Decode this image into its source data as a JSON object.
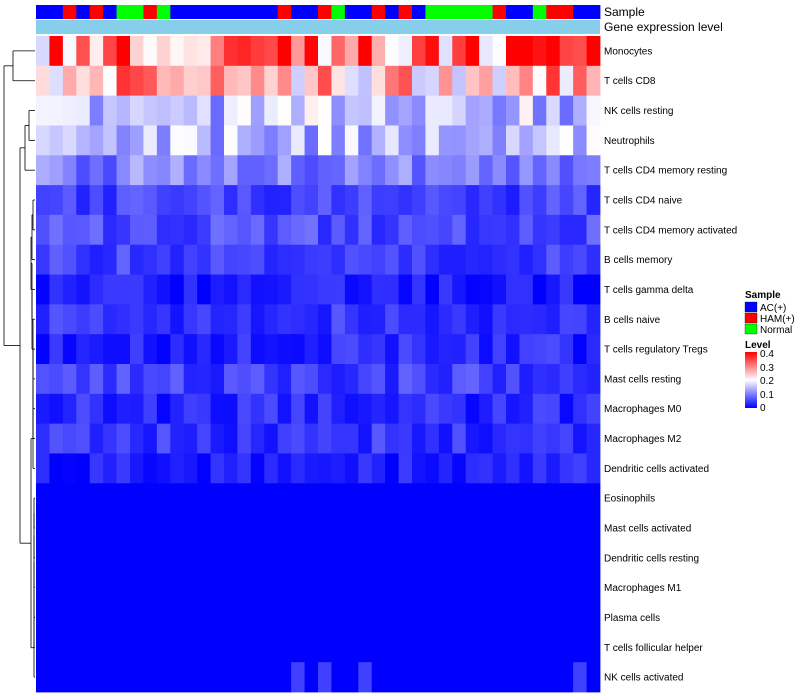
{
  "chart_data": {
    "type": "heatmap",
    "title": "",
    "annotations": {
      "sample_label": "Sample",
      "expression_label": "Gene expression level",
      "sample_groups": [
        "AC(+)",
        "AC(+)",
        "HAM(+)",
        "AC(+)",
        "HAM(+)",
        "AC(+)",
        "Normal",
        "Normal",
        "HAM(+)",
        "Normal",
        "AC(+)",
        "AC(+)",
        "AC(+)",
        "AC(+)",
        "AC(+)",
        "AC(+)",
        "AC(+)",
        "AC(+)",
        "HAM(+)",
        "AC(+)",
        "AC(+)",
        "HAM(+)",
        "Normal",
        "AC(+)",
        "AC(+)",
        "HAM(+)",
        "AC(+)",
        "HAM(+)",
        "AC(+)",
        "Normal",
        "Normal",
        "Normal",
        "Normal",
        "Normal",
        "HAM(+)",
        "AC(+)",
        "AC(+)",
        "Normal",
        "HAM(+)",
        "HAM(+)",
        "AC(+)",
        "AC(+)"
      ]
    },
    "rows": [
      "Monocytes",
      "T cells CD8",
      "NK cells resting",
      "Neutrophils",
      "T cells CD4 memory resting",
      "T cells CD4 naive",
      "T cells CD4 memory activated",
      "B cells memory",
      "T cells gamma delta",
      "B cells naive",
      "T cells regulatory  Tregs",
      "Mast cells resting",
      "Macrophages M0",
      "Macrophages M2",
      "Dendritic cells activated",
      "Eosinophils",
      "Mast cells activated",
      "Dendritic cells resting",
      "Macrophages M1",
      "Plasma cells",
      "T cells follicular helper",
      "NK cells activated"
    ],
    "row_base": [
      0.31,
      0.27,
      0.15,
      0.14,
      0.1,
      0.05,
      0.06,
      0.05,
      0.02,
      0.04,
      0.03,
      0.05,
      0.03,
      0.04,
      0.02,
      0.0,
      0.0,
      0.0,
      0.0,
      0.0,
      0.0,
      0.0
    ],
    "n_columns": 42,
    "color_scale": {
      "domain": [
        0,
        0.2,
        0.4
      ],
      "colors": [
        "#0000ff",
        "#ffffff",
        "#ff0000"
      ]
    },
    "legend": {
      "sample_title": "Sample",
      "sample_entries": [
        {
          "name": "AC(+)",
          "color": "#0000ff"
        },
        {
          "name": "HAM(+)",
          "color": "#ff0000"
        },
        {
          "name": "Normal",
          "color": "#00ff00"
        }
      ],
      "level_title": "Level",
      "level_ticks": [
        "0.4",
        "0.3",
        "0.2",
        "0.1",
        "0"
      ],
      "placement": "right"
    },
    "group_colors": {
      "AC(+)": "#0000ff",
      "HAM(+)": "#ff0000",
      "Normal": "#00ff00"
    },
    "expression_color": "#87ceeb",
    "dendrogram_color": "#000000"
  }
}
